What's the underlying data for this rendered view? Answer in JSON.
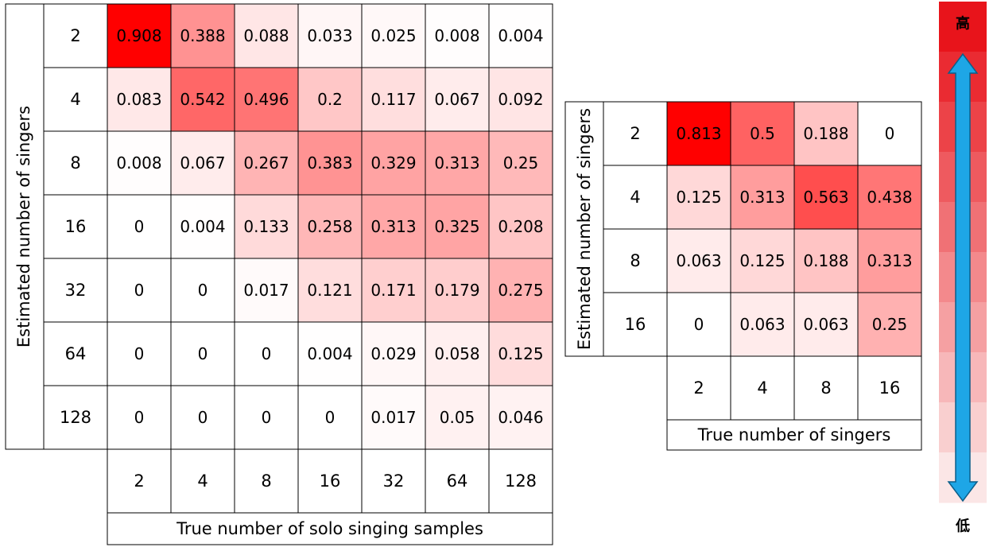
{
  "chart_data": [
    {
      "type": "heatmap",
      "xlabel": "True number of solo singing samples",
      "ylabel": "Estimated number of singers",
      "x_categories": [
        "2",
        "4",
        "8",
        "16",
        "32",
        "64",
        "128"
      ],
      "y_categories": [
        "2",
        "4",
        "8",
        "16",
        "32",
        "64",
        "128"
      ],
      "values": [
        [
          "0.908",
          "0.388",
          "0.088",
          "0.033",
          "0.025",
          "0.008",
          "0.004"
        ],
        [
          "0.083",
          "0.542",
          "0.496",
          "0.2",
          "0.117",
          "0.067",
          "0.092"
        ],
        [
          "0.008",
          "0.067",
          "0.267",
          "0.383",
          "0.329",
          "0.313",
          "0.25"
        ],
        [
          "0",
          "0.004",
          "0.133",
          "0.258",
          "0.313",
          "0.325",
          "0.208"
        ],
        [
          "0",
          "0",
          "0.017",
          "0.121",
          "0.171",
          "0.179",
          "0.275"
        ],
        [
          "0",
          "0",
          "0",
          "0.004",
          "0.029",
          "0.058",
          "0.125"
        ],
        [
          "0",
          "0",
          "0",
          "0",
          "0.017",
          "0.05",
          "0.046"
        ]
      ],
      "color_min": "#ffffff",
      "color_max": "#ff0000"
    },
    {
      "type": "heatmap",
      "xlabel": "True number of singers",
      "ylabel": "Estimated number of singers",
      "x_categories": [
        "2",
        "4",
        "8",
        "16"
      ],
      "y_categories": [
        "2",
        "4",
        "8",
        "16"
      ],
      "values": [
        [
          "0.813",
          "0.5",
          "0.188",
          "0"
        ],
        [
          "0.125",
          "0.313",
          "0.563",
          "0.438"
        ],
        [
          "0.063",
          "0.125",
          "0.188",
          "0.313"
        ],
        [
          "0",
          "0.063",
          "0.063",
          "0.25"
        ]
      ],
      "color_min": "#ffffff",
      "color_max": "#ff0000"
    }
  ],
  "color_scale": {
    "high_label": "高",
    "low_label": "低",
    "arrow_color": "#1ea6e6",
    "top_color": "#e8141b",
    "bottom_color": "#fbe6e6"
  }
}
